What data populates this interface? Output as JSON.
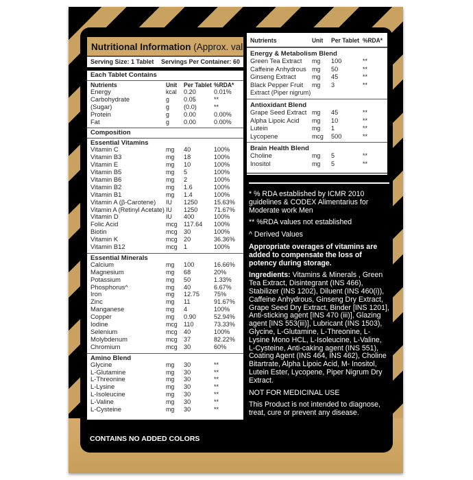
{
  "left": {
    "title": "Nutritional Information",
    "title_suffix": "(Approx. value)",
    "serving_size": "Serving Size: 1 Tablet",
    "servings": "Servings Per Container: 60",
    "each_tablet": "Each Tablet Contains",
    "columns": [
      "Nutrients",
      "Unit",
      "Per Tablet",
      "%RDA*"
    ],
    "basic": [
      [
        "Energy",
        "kcal",
        "0.20",
        "0.01%"
      ],
      [
        "Carbohydrate",
        "g",
        "0.05",
        "**"
      ],
      [
        "(Sugar)",
        "g",
        "(0.0)",
        "**"
      ],
      [
        "Protein",
        "g",
        "0.00",
        "0.00%"
      ],
      [
        "Fat",
        "g",
        "0.00",
        "0.00%"
      ]
    ],
    "composition": "Composition",
    "sections": [
      {
        "title": "Essential Vitamins",
        "rows": [
          [
            "Vitamin C",
            "mg",
            "40",
            "100%"
          ],
          [
            "Vitamin B3",
            "mg",
            "18",
            "100%"
          ],
          [
            "Vitamin E",
            "mg",
            "10",
            "100%"
          ],
          [
            "Vitamin B5",
            "mg",
            "5",
            "100%"
          ],
          [
            "Vitamin B6",
            "mg",
            "2",
            "100%"
          ],
          [
            "Vitamin B2",
            "mg",
            "1.6",
            "100%"
          ],
          [
            "Vitamin B1",
            "mg",
            "1.4",
            "100%"
          ],
          [
            "Vitamin A (β-Carotene)",
            "IU",
            "1250",
            "15.63%"
          ],
          [
            "Vitamin A (Retinyl Acetate)",
            "IU",
            "1250",
            "71.67%"
          ],
          [
            "Vitamin D",
            "IU",
            "400",
            "100%"
          ],
          [
            "Folic Acid",
            "mcg",
            "117.64",
            "100%"
          ],
          [
            "Biotin",
            "mcg",
            "30",
            "100%"
          ],
          [
            "Vitamin K",
            "mcg",
            "20",
            "36.36%"
          ],
          [
            "Vitamin B12",
            "mcg",
            "1",
            "100%"
          ]
        ]
      },
      {
        "title": "Essential Minerals",
        "rows": [
          [
            "Calcium",
            "mg",
            "100",
            "16.66%"
          ],
          [
            "Magnesium",
            "mg",
            "68",
            "20%"
          ],
          [
            "Potassium",
            "mg",
            "50",
            "1.33%"
          ],
          [
            "Phosphorus^",
            "mg",
            "40",
            "6.67%"
          ],
          [
            "Iron",
            "mg",
            "12.75",
            "75%"
          ],
          [
            "Zinc",
            "mg",
            "11",
            "91.67%"
          ],
          [
            "Manganese",
            "mg",
            "4",
            "100%"
          ],
          [
            "Copper",
            "mg",
            "0.90",
            "52.94%"
          ],
          [
            "Iodine",
            "mcg",
            "110",
            "73.33%"
          ],
          [
            "Selenium",
            "mcg",
            "40",
            "100%"
          ],
          [
            "Molybdenum",
            "mcg",
            "37",
            "82.22%"
          ],
          [
            "Chromium",
            "mcg",
            "30",
            "60%"
          ]
        ]
      },
      {
        "title": "Amino Blend",
        "rows": [
          [
            "Glycine",
            "mg",
            "30",
            "**"
          ],
          [
            "L-Glutamine",
            "mg",
            "30",
            "**"
          ],
          [
            "L-Threonine",
            "mg",
            "30",
            "**"
          ],
          [
            "L-Lysine",
            "mg",
            "30",
            "**"
          ],
          [
            "L-Isoleucine",
            "mg",
            "30",
            "**"
          ],
          [
            "L-Valine",
            "mg",
            "30",
            "**"
          ],
          [
            "L-Cysteine",
            "mg",
            "30",
            "**"
          ]
        ]
      }
    ]
  },
  "right": {
    "columns": [
      "Nutrients",
      "Unit",
      "Per Tablet",
      "%RDA*"
    ],
    "sections": [
      {
        "title": "Energy & Metabolism Blend",
        "rows": [
          [
            "Green Tea Extract",
            "mg",
            "100",
            "**"
          ],
          [
            "Caffeine Anhydrous",
            "mg",
            "50",
            "**"
          ],
          [
            "Ginseng Extract",
            "mg",
            "45",
            "**"
          ],
          [
            "Black Pepper Fruit",
            "mg",
            "3",
            "**"
          ],
          [
            "Extract (Piper nigrum)",
            "",
            "",
            ""
          ]
        ]
      },
      {
        "title": "Antioxidant Blend",
        "rows": [
          [
            "Grape Seed Extract",
            "mg",
            "45",
            "**"
          ],
          [
            "Alpha Lipoic Acid",
            "mg",
            "10",
            "**"
          ],
          [
            "Lutein",
            "mg",
            "1",
            "**"
          ],
          [
            "Lycopene",
            "mcg",
            "500",
            "**"
          ]
        ]
      },
      {
        "title": "Brain Health Blend",
        "rows": [
          [
            "Choline",
            "mg",
            "5",
            "**"
          ],
          [
            "Inositol",
            "mg",
            "5",
            "**"
          ]
        ]
      }
    ]
  },
  "notes": {
    "rda_note": "* % RDA established by ICMR 2010 guidelines & CODEX Alimentarius for Moderate work Men",
    "not_established": "** %RDA values not established",
    "derived": "^ Derived Values",
    "overages": "Appropriate overages of vitamins are added to compensate the loss of potency during storage.",
    "ingredients_label": "Ingredients:",
    "ingredients": "Vitamins & Minerals , Green Tea Extract, Disintegrant (INS 466), Stabilizer (INS 1202), Diluent (INS 460(i)), Caffeine Anhydrous, Ginseng Dry Extract, Grape Seed Dry Extract, Binder [INS 1201], Anti-sticking agent [INS 470 (iii)], Glazing agent [INS 553(iii)], Lubricant (INS 1503), Glycine, L-Glutamine, L-Threonine, L-Lysine  Mono  HCL, L-Isoleucine, L-Valine, L-Cysteine, Anti-caking agent (INS 551), Coating Agent (INS 464, INS 462), Choline Bitartrate, Alpha Lipoic Acid, M- Inositol, Lutein Ester, Lycopene, Piper Nigrum Dry Extract.",
    "not_medicinal": "NOT FOR MEDICINAL USE",
    "disclaimer": "This Product is not intended to diagnose, treat, cure or prevent any disease."
  },
  "no_colors": "CONTAINS NO ADDED COLORS",
  "colors": {
    "gold": "#cfa766",
    "black": "#000000"
  }
}
